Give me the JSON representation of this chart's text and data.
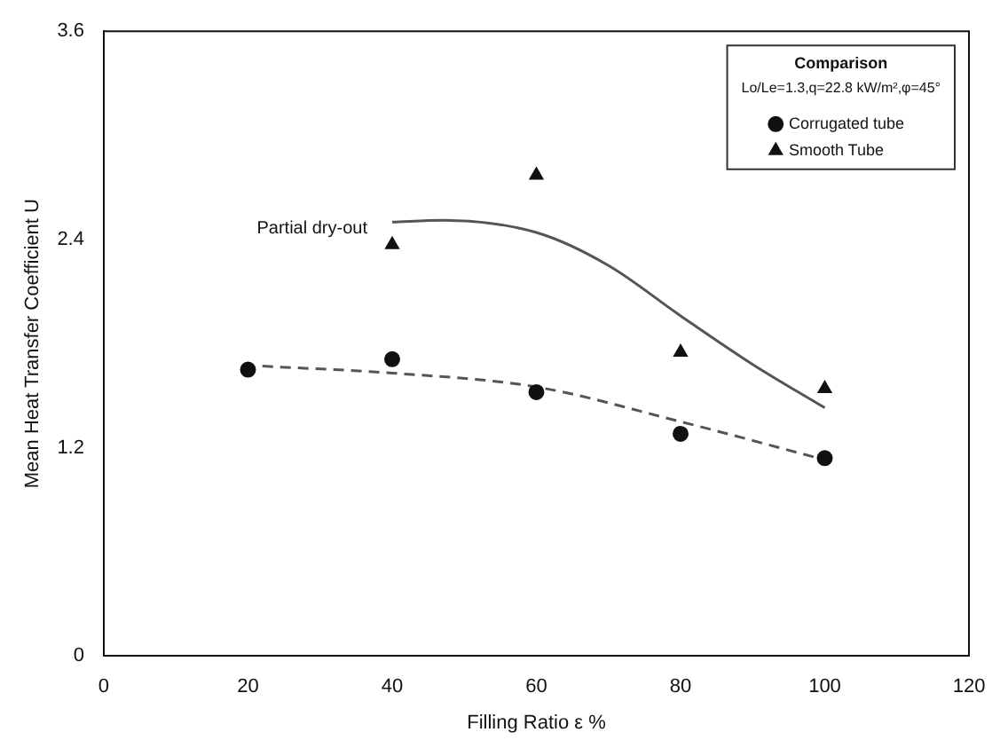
{
  "chart_data": {
    "type": "scatter",
    "xlabel": "Filling Ratio ε %",
    "ylabel": "Mean Heat Transfer Coefficient U",
    "legend_title": "Comparison",
    "legend": "top right",
    "marker": "circle",
    "grid": false,
    "annotations": [
      "Lo/Le=1.3,q=22.8 kW/m²,φ=45°",
      {
        "text": "Partial dry-out",
        "x": 40,
        "y": 2.37
      }
    ],
    "xlim": [
      0,
      120
    ],
    "xticks": [
      0,
      20,
      40,
      60,
      80,
      100,
      120
    ],
    "ylim": [
      0,
      3.6
    ],
    "yticks": [
      0,
      1.2,
      2.4,
      3.6
    ],
    "series": [
      {
        "name": "Corrugated tube",
        "color": "#111111",
        "x": [
          20,
          40,
          60,
          80,
          100
        ],
        "values": [
          1.65,
          1.71,
          1.52,
          1.28,
          1.14
        ]
      },
      {
        "name": "Smooth Tube",
        "marker": "triangle",
        "color": "#111111",
        "x": [
          40,
          60,
          80,
          100
        ],
        "values": [
          2.37,
          2.77,
          1.75,
          1.54
        ]
      },
      {
        "type": "line",
        "marker": "none",
        "line_style": "dashed",
        "color": "#555555",
        "x": [
          22,
          40,
          60,
          80,
          100
        ],
        "values": [
          1.67,
          1.63,
          1.55,
          1.35,
          1.13
        ]
      },
      {
        "type": "line",
        "marker": "none",
        "line_style": "solid",
        "color": "#555555",
        "x": [
          40,
          47,
          60,
          70,
          80,
          90,
          100
        ],
        "values": [
          2.5,
          2.51,
          2.44,
          2.25,
          1.96,
          1.68,
          1.43
        ]
      }
    ]
  }
}
